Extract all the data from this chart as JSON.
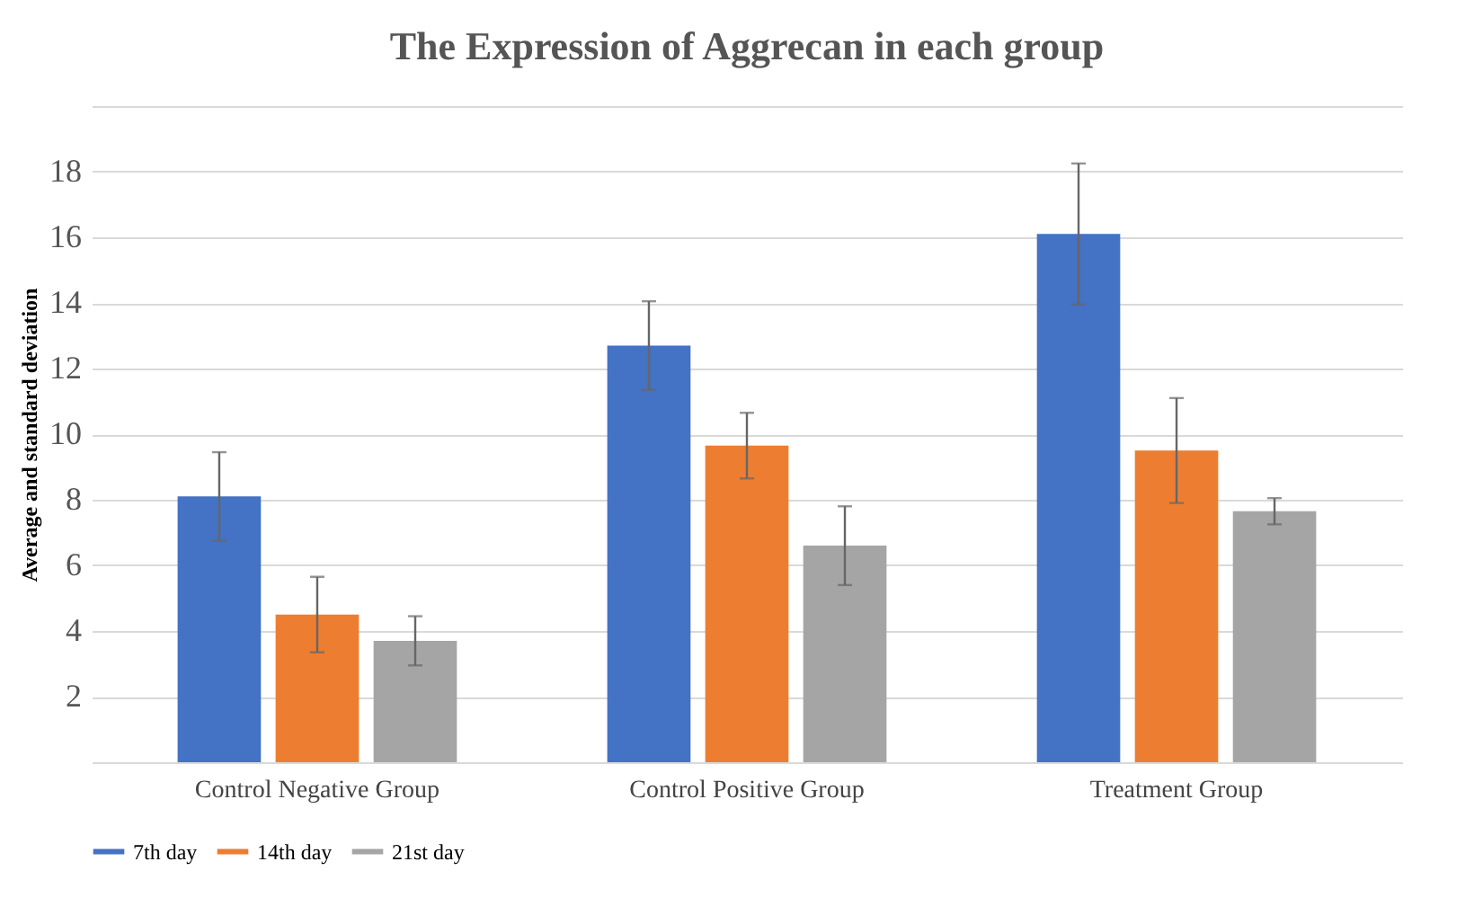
{
  "chart_data": {
    "type": "bar",
    "title": "The Expression of Aggrecan in each group",
    "ylabel": "Average and standard deviation",
    "categories": [
      "Control Negative Group",
      "Control Positive Group",
      "Treatment Group"
    ],
    "series": [
      {
        "name": "7th day",
        "color": "#4472c4",
        "values": [
          8.1,
          12.7,
          16.1
        ],
        "errors": [
          1.35,
          1.35,
          2.15
        ]
      },
      {
        "name": "14th day",
        "color": "#ed7d31",
        "values": [
          4.5,
          9.65,
          9.5
        ],
        "errors": [
          1.15,
          1.0,
          1.6
        ]
      },
      {
        "name": "21st day",
        "color": "#a5a5a5",
        "values": [
          3.7,
          6.6,
          7.65
        ],
        "errors": [
          0.75,
          1.2,
          0.4
        ]
      }
    ],
    "ylim": [
      0,
      20
    ],
    "yticks": [
      {
        "value": 0,
        "label": null
      },
      2,
      4,
      6,
      8,
      10,
      12,
      14,
      16,
      18,
      {
        "value": 20,
        "label": null
      }
    ],
    "grid": "y",
    "legend": "bottom"
  }
}
